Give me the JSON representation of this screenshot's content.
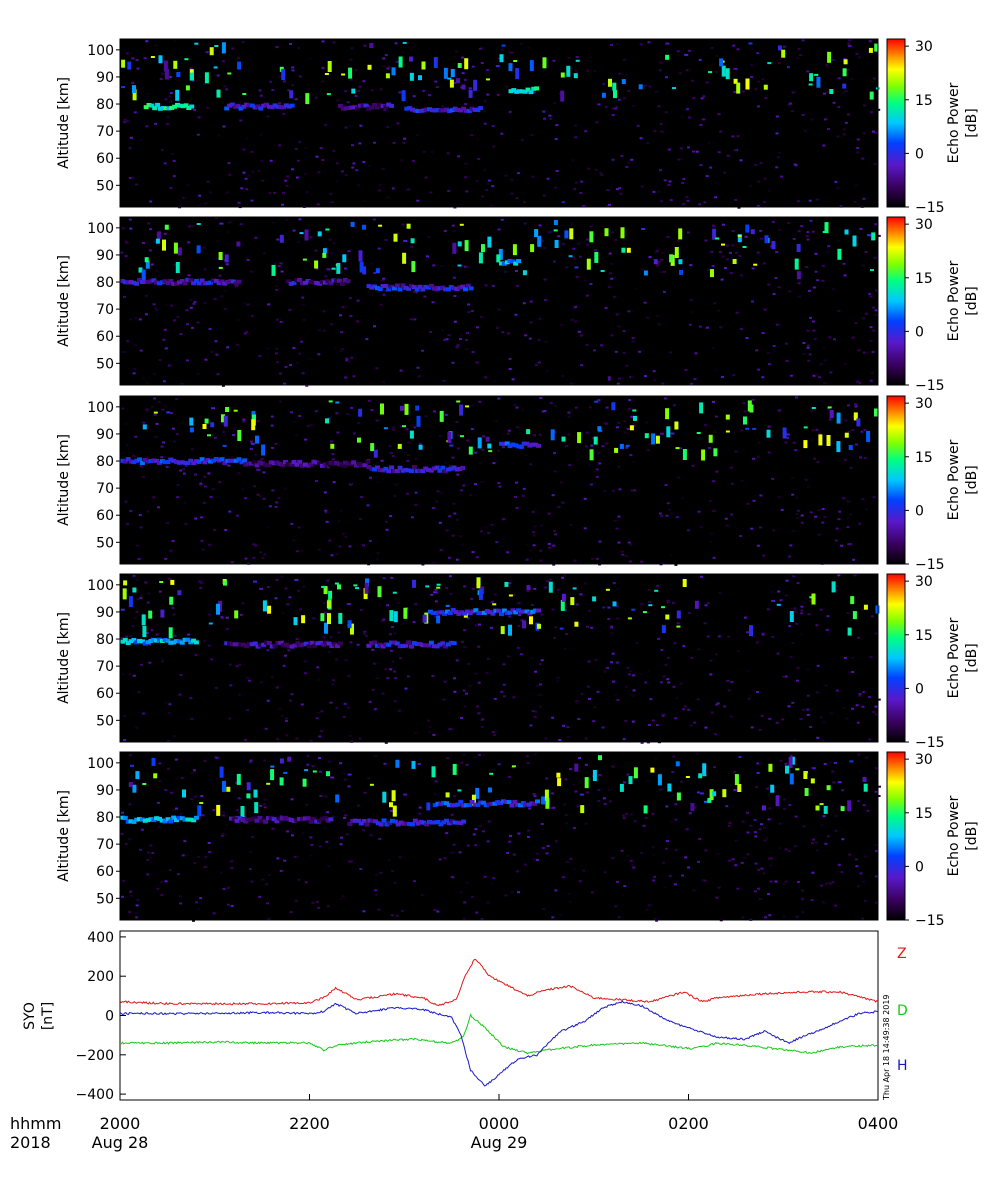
{
  "chart_data": {
    "type": "heatmap",
    "panels": [
      {
        "ylabel": "Altitude [km]",
        "yticks": [
          50,
          60,
          70,
          80,
          90,
          100
        ],
        "ylim": [
          42,
          104
        ],
        "colorbar_label": "Echo Power [dB]",
        "colorbar_ticks": [
          -15,
          0,
          15,
          30
        ],
        "echo_layers": [
          {
            "t_start": 0.5,
            "t_end": 1.5,
            "altitude": 79,
            "power": 6
          },
          {
            "t_start": 2.2,
            "t_end": 3.6,
            "altitude": 79,
            "power": -5
          },
          {
            "t_start": 4.6,
            "t_end": 5.7,
            "altitude": 79,
            "power": -8
          },
          {
            "t_start": 6.0,
            "t_end": 7.6,
            "altitude": 78,
            "power": -5
          },
          {
            "t_start": 8.2,
            "t_end": 8.8,
            "altitude": 85,
            "power": 5
          }
        ]
      },
      {
        "ylabel": "Altitude [km]",
        "yticks": [
          50,
          60,
          70,
          80,
          90,
          100
        ],
        "ylim": [
          42,
          104
        ],
        "colorbar_label": "Echo Power [dB]",
        "colorbar_ticks": [
          -15,
          0,
          15,
          30
        ],
        "echo_layers": [
          {
            "t_start": 0.0,
            "t_end": 2.5,
            "altitude": 80,
            "power": -6
          },
          {
            "t_start": 3.5,
            "t_end": 4.8,
            "altitude": 80,
            "power": -7
          },
          {
            "t_start": 5.2,
            "t_end": 7.4,
            "altitude": 78,
            "power": -5
          },
          {
            "t_start": 8.0,
            "t_end": 8.4,
            "altitude": 87,
            "power": 2
          }
        ]
      },
      {
        "ylabel": "Altitude [km]",
        "yticks": [
          50,
          60,
          70,
          80,
          90,
          100
        ],
        "ylim": [
          42,
          104
        ],
        "colorbar_label": "Echo Power [dB]",
        "colorbar_ticks": [
          -15,
          0,
          15,
          30
        ],
        "echo_layers": [
          {
            "t_start": 0.0,
            "t_end": 2.6,
            "altitude": 80,
            "power": -4
          },
          {
            "t_start": 2.6,
            "t_end": 5.2,
            "altitude": 79,
            "power": -9
          },
          {
            "t_start": 5.2,
            "t_end": 7.2,
            "altitude": 77,
            "power": -6
          },
          {
            "t_start": 8.0,
            "t_end": 8.8,
            "altitude": 86,
            "power": -3
          }
        ]
      },
      {
        "ylabel": "Altitude [km]",
        "yticks": [
          50,
          60,
          70,
          80,
          90,
          100
        ],
        "ylim": [
          42,
          104
        ],
        "colorbar_label": "Echo Power [dB]",
        "colorbar_ticks": [
          -15,
          0,
          15,
          30
        ],
        "echo_layers": [
          {
            "t_start": 0.0,
            "t_end": 1.6,
            "altitude": 79,
            "power": 2
          },
          {
            "t_start": 2.2,
            "t_end": 4.6,
            "altitude": 78,
            "power": -8
          },
          {
            "t_start": 5.2,
            "t_end": 7.0,
            "altitude": 78,
            "power": -5
          },
          {
            "t_start": 6.5,
            "t_end": 8.8,
            "altitude": 90,
            "power": -3
          }
        ]
      },
      {
        "ylabel": "Altitude [km]",
        "yticks": [
          50,
          60,
          70,
          80,
          90,
          100
        ],
        "ylim": [
          42,
          104
        ],
        "colorbar_label": "Echo Power [dB]",
        "colorbar_ticks": [
          -15,
          0,
          15,
          30
        ],
        "echo_layers": [
          {
            "t_start": 0.0,
            "t_end": 1.6,
            "altitude": 79,
            "power": 2
          },
          {
            "t_start": 2.3,
            "t_end": 4.4,
            "altitude": 79,
            "power": -8
          },
          {
            "t_start": 4.8,
            "t_end": 7.2,
            "altitude": 78,
            "power": -5
          },
          {
            "t_start": 6.6,
            "t_end": 8.8,
            "altitude": 85,
            "power": -4
          }
        ]
      }
    ],
    "magnetometer": {
      "ylabel": "SYO [nT]",
      "yticks": [
        -400,
        -200,
        0,
        200,
        400
      ],
      "ylim": [
        -430,
        430
      ],
      "series": [
        {
          "name": "Z",
          "color": "#e01818",
          "points": [
            [
              0,
              70
            ],
            [
              1,
              60
            ],
            [
              2,
              60
            ],
            [
              3,
              60
            ],
            [
              4,
              65
            ],
            [
              4.3,
              90
            ],
            [
              4.55,
              140
            ],
            [
              5.0,
              80
            ],
            [
              5.8,
              110
            ],
            [
              6.4,
              90
            ],
            [
              6.7,
              50
            ],
            [
              7.1,
              80
            ],
            [
              7.3,
              210
            ],
            [
              7.5,
              290
            ],
            [
              7.8,
              200
            ],
            [
              8.2,
              150
            ],
            [
              8.6,
              100
            ],
            [
              9.0,
              130
            ],
            [
              9.5,
              150
            ],
            [
              10.0,
              90
            ],
            [
              10.6,
              80
            ],
            [
              11.2,
              70
            ],
            [
              11.9,
              120
            ],
            [
              12.3,
              70
            ],
            [
              12.6,
              90
            ],
            [
              13.5,
              110
            ],
            [
              14.5,
              120
            ],
            [
              15.2,
              120
            ],
            [
              16.0,
              70
            ]
          ]
        },
        {
          "name": "D",
          "color": "#18c818",
          "points": [
            [
              0,
              -140
            ],
            [
              1,
              -140
            ],
            [
              2,
              -135
            ],
            [
              3,
              -140
            ],
            [
              4,
              -140
            ],
            [
              4.3,
              -175
            ],
            [
              4.6,
              -150
            ],
            [
              5.4,
              -130
            ],
            [
              6.2,
              -120
            ],
            [
              6.7,
              -135
            ],
            [
              7.0,
              -140
            ],
            [
              7.25,
              -110
            ],
            [
              7.4,
              0
            ],
            [
              7.7,
              -60
            ],
            [
              8.1,
              -160
            ],
            [
              8.6,
              -190
            ],
            [
              9.2,
              -170
            ],
            [
              10.0,
              -150
            ],
            [
              11.0,
              -140
            ],
            [
              12.1,
              -170
            ],
            [
              12.6,
              -140
            ],
            [
              13.5,
              -160
            ],
            [
              14.6,
              -190
            ],
            [
              15.2,
              -160
            ],
            [
              16.0,
              -150
            ]
          ]
        },
        {
          "name": "H",
          "color": "#1818c8",
          "points": [
            [
              0,
              10
            ],
            [
              1,
              10
            ],
            [
              2,
              10
            ],
            [
              3,
              15
            ],
            [
              4,
              10
            ],
            [
              4.3,
              20
            ],
            [
              4.55,
              60
            ],
            [
              5.0,
              10
            ],
            [
              5.8,
              40
            ],
            [
              6.4,
              30
            ],
            [
              7.0,
              -10
            ],
            [
              7.2,
              -100
            ],
            [
              7.4,
              -280
            ],
            [
              7.7,
              -360
            ],
            [
              8.0,
              -300
            ],
            [
              8.4,
              -220
            ],
            [
              8.8,
              -200
            ],
            [
              9.3,
              -80
            ],
            [
              9.8,
              -30
            ],
            [
              10.2,
              40
            ],
            [
              10.6,
              70
            ],
            [
              11.0,
              50
            ],
            [
              11.6,
              -30
            ],
            [
              12.2,
              -80
            ],
            [
              12.6,
              -110
            ],
            [
              13.2,
              -120
            ],
            [
              13.6,
              -80
            ],
            [
              14.1,
              -140
            ],
            [
              14.5,
              -100
            ],
            [
              15.2,
              -30
            ],
            [
              15.6,
              10
            ],
            [
              16.0,
              20
            ]
          ]
        }
      ]
    },
    "xaxis": {
      "range_hours": [
        0,
        16
      ],
      "ticks": [
        {
          "t": 0,
          "label": "2000",
          "sublabel": "Aug 28"
        },
        {
          "t": 4,
          "label": "2200",
          "sublabel": ""
        },
        {
          "t": 8,
          "label": "0000",
          "sublabel": "Aug 29"
        },
        {
          "t": 12,
          "label": "0200",
          "sublabel": ""
        },
        {
          "t": 16,
          "label": "0400",
          "sublabel": ""
        }
      ],
      "left_label": "hhmm",
      "left_sublabel": "2018"
    },
    "timestamp": "Thu Apr 18 14:49:38 2019",
    "colors": {
      "background": "#000000",
      "axis": "#000000"
    }
  }
}
